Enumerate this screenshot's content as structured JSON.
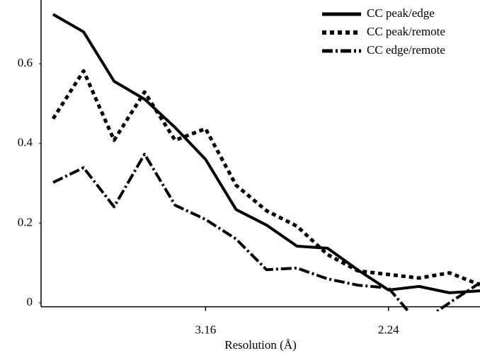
{
  "chart_data": {
    "type": "line",
    "x_label": "Resolution (Å)",
    "categories": [
      null,
      null,
      null,
      null,
      null,
      "3.16",
      null,
      null,
      null,
      null,
      null,
      "2.24",
      null,
      null,
      null
    ],
    "series": [
      {
        "name": "CC peak/edge",
        "color": "#000000",
        "dash": "solid",
        "values": [
          0.724,
          0.68,
          0.556,
          0.511,
          0.44,
          0.36,
          0.234,
          0.195,
          0.142,
          0.137,
          0.082,
          0.032,
          0.041,
          0.025,
          0.03
        ]
      },
      {
        "name": "CC peak/remote",
        "color": "#000000",
        "dash": "dotted",
        "values": [
          0.462,
          0.582,
          0.408,
          0.529,
          0.408,
          0.437,
          0.295,
          0.231,
          0.192,
          0.121,
          0.08,
          0.071,
          0.062,
          0.075,
          0.045
        ]
      },
      {
        "name": "CC edge/remote",
        "color": "#000000",
        "dash": "dashdot",
        "values": [
          0.302,
          0.339,
          0.241,
          0.373,
          0.245,
          0.209,
          0.16,
          0.083,
          0.087,
          0.06,
          0.044,
          0.037,
          -0.053,
          0.0,
          0.05
        ]
      }
    ],
    "ylim": [
      -0.01,
      0.76
    ],
    "yticks": [
      0,
      0.2,
      0.4,
      0.6
    ],
    "grid": false,
    "legend": "top-right"
  }
}
